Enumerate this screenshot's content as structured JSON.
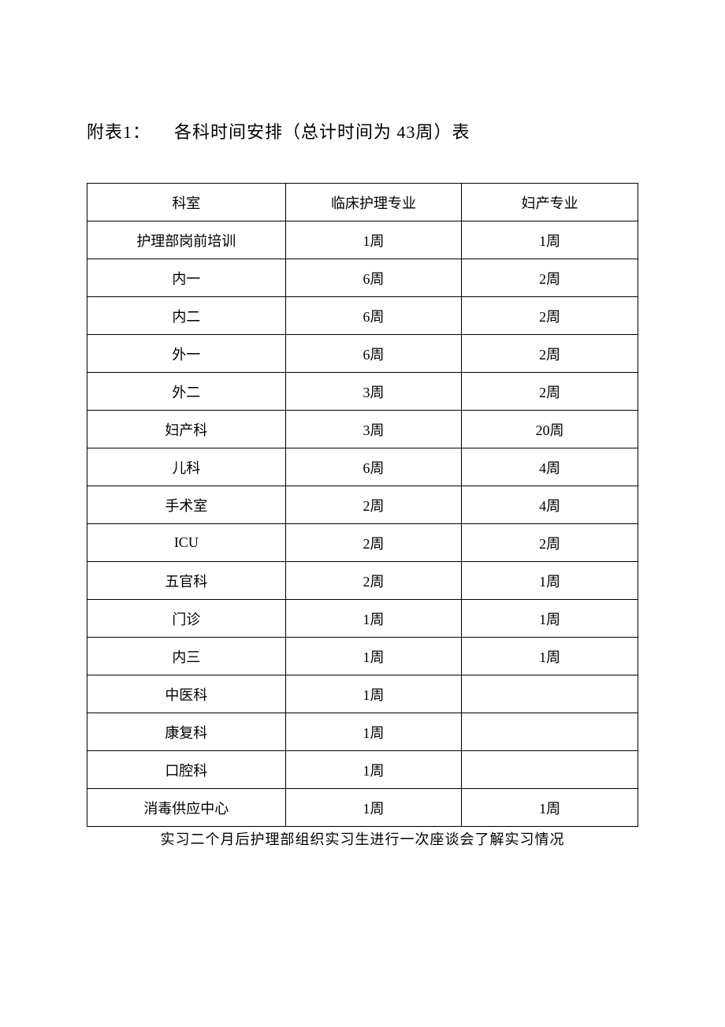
{
  "title": {
    "label": "附表1：",
    "text": "各科时间安排（总计时间为 43周）表"
  },
  "table": {
    "headers": [
      "科室",
      "临床护理专业",
      "妇产专业"
    ],
    "rows": [
      [
        "护理部岗前培训",
        "1周",
        "1周"
      ],
      [
        "内一",
        "6周",
        "2周"
      ],
      [
        "内二",
        "6周",
        "2周"
      ],
      [
        "外一",
        "6周",
        "2周"
      ],
      [
        "外二",
        "3周",
        "2周"
      ],
      [
        "妇产科",
        "3周",
        "20周"
      ],
      [
        "儿科",
        "6周",
        "4周"
      ],
      [
        "手术室",
        "2周",
        "4周"
      ],
      [
        "ICU",
        "2周",
        "2周"
      ],
      [
        "五官科",
        "2周",
        "1周"
      ],
      [
        "门诊",
        "1周",
        "1周"
      ],
      [
        "内三",
        "1周",
        "1周"
      ],
      [
        "中医科",
        "1周",
        ""
      ],
      [
        "康复科",
        "1周",
        ""
      ],
      [
        "口腔科",
        "1周",
        ""
      ],
      [
        "消毒供应中心",
        "1周",
        "1周"
      ]
    ]
  },
  "footer": "实习二个月后护理部组织实习生进行一次座谈会了解实习情况",
  "colors": {
    "background": "#ffffff",
    "text": "#000000",
    "border": "#000000"
  },
  "fonts": {
    "title_size": 22,
    "cell_size": 18,
    "footer_size": 18
  }
}
